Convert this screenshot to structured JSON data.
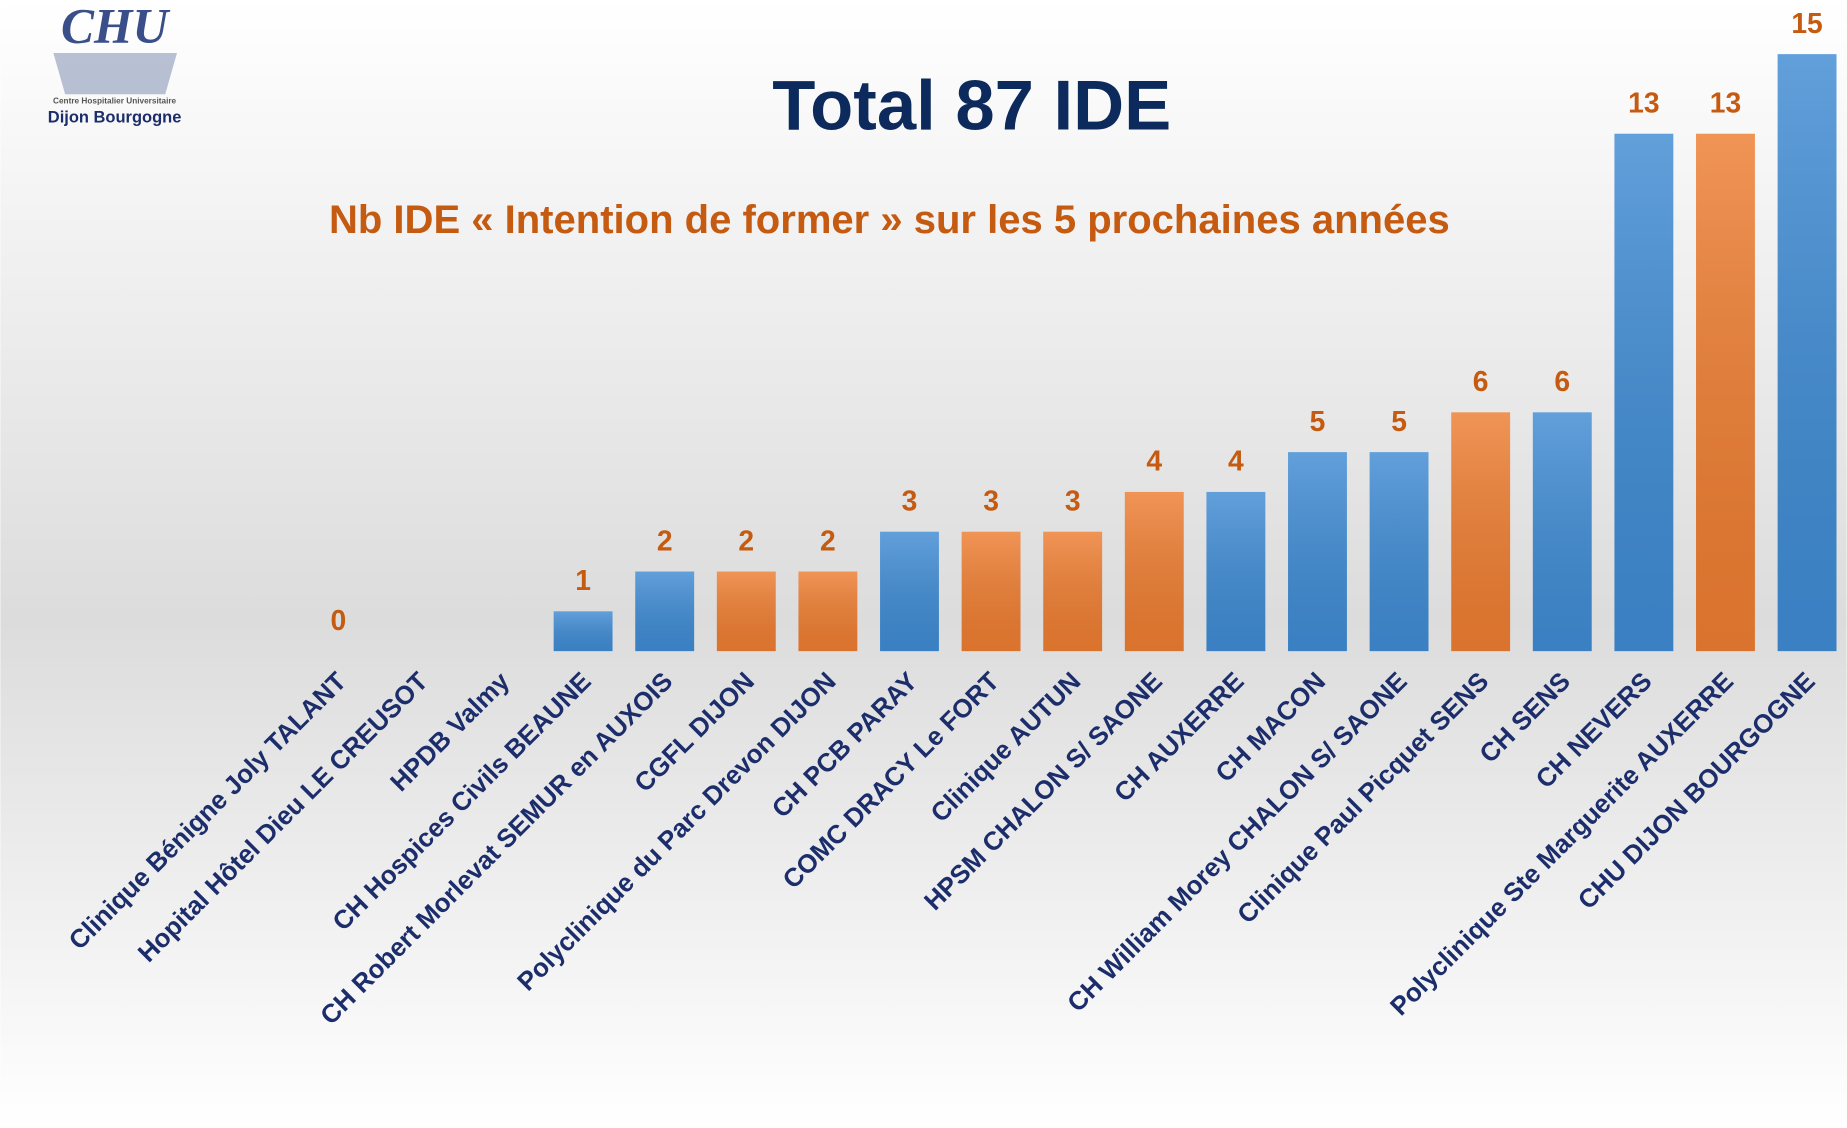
{
  "logo": {
    "name": "CHU",
    "subtitle": "Centre Hospitalier Universitaire",
    "city": "Dijon Bourgogne"
  },
  "chart_data": {
    "type": "bar",
    "title": "Total 87 IDE",
    "subtitle": "Nb IDE « Intention de former » sur les 5 prochaines années",
    "categories": [
      "Clinique Bénigne  Joly TALANT",
      "Hopital Hôtel Dieu LE CREUSOT",
      "HPDB Valmy",
      "CH Hospices Civils  BEAUNE",
      "CH Robert Morlevat SEMUR en AUXOIS",
      "CGFL DIJON",
      "Polyclinique du Parc Drevon DIJON",
      "CH PCB PARAY",
      "COMC  DRACY Le FORT",
      "Clinique AUTUN",
      "HPSM CHALON S/ SAONE",
      "CH AUXERRE",
      "CH MACON",
      "CH William Morey CHALON S/ SAONE",
      "Clinique Paul Picquet  SENS",
      "CH SENS",
      "CH  NEVERS",
      "Polyclinique Ste Marguerite AUXERRE",
      "CHU DIJON BOURGOGNE"
    ],
    "values": [
      0,
      null,
      null,
      1,
      2,
      2,
      2,
      3,
      3,
      3,
      4,
      4,
      5,
      5,
      6,
      6,
      13,
      13,
      15
    ],
    "colors": [
      "#ed7d31",
      null,
      null,
      "#3f8bd3",
      "#3f8bd3",
      "#ed7d31",
      "#ed7d31",
      "#3f8bd3",
      "#ed7d31",
      "#ed7d31",
      "#ed7d31",
      "#3f8bd3",
      "#3f8bd3",
      "#3f8bd3",
      "#ed7d31",
      "#3f8bd3",
      "#3f8bd3",
      "#ed7d31",
      "#3f8bd3"
    ],
    "ylim": [
      0,
      15
    ]
  }
}
